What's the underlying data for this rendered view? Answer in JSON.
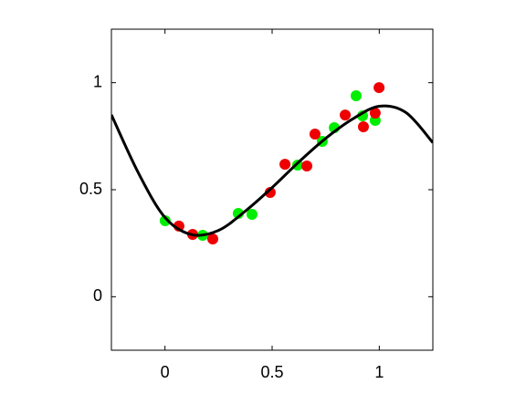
{
  "chart_data": {
    "type": "scatter",
    "xlim": [
      -0.25,
      1.25
    ],
    "ylim": [
      -0.25,
      1.25
    ],
    "xticks": [
      0,
      0.5,
      1
    ],
    "yticks": [
      0,
      0.5,
      1
    ],
    "grid": false,
    "series": [
      {
        "color": "#00ee00",
        "marker": true,
        "x": [
          0.001,
          0.176,
          0.342,
          0.406,
          0.619,
          0.734,
          0.79,
          0.892,
          0.922,
          0.981
        ],
        "values": [
          0.355,
          0.287,
          0.389,
          0.385,
          0.615,
          0.726,
          0.79,
          0.939,
          0.845,
          0.824
        ]
      },
      {
        "color": "#ee0000",
        "marker": true,
        "x": [
          0.065,
          0.129,
          0.223,
          0.491,
          0.56,
          0.662,
          0.7,
          0.841,
          0.926,
          0.981,
          0.999
        ],
        "values": [
          0.33,
          0.291,
          0.27,
          0.487,
          0.619,
          0.611,
          0.76,
          0.849,
          0.794,
          0.858,
          0.977
        ]
      },
      {
        "color": "#000000",
        "marker": false,
        "x": [
          -0.25,
          -0.125,
          0,
          0.125,
          0.25,
          0.375,
          0.5,
          0.625,
          0.75,
          0.875,
          1,
          1.125,
          1.25
        ],
        "values": [
          0.85,
          0.58,
          0.37,
          0.29,
          0.31,
          0.4,
          0.51,
          0.63,
          0.74,
          0.83,
          0.89,
          0.86,
          0.72
        ]
      }
    ]
  }
}
